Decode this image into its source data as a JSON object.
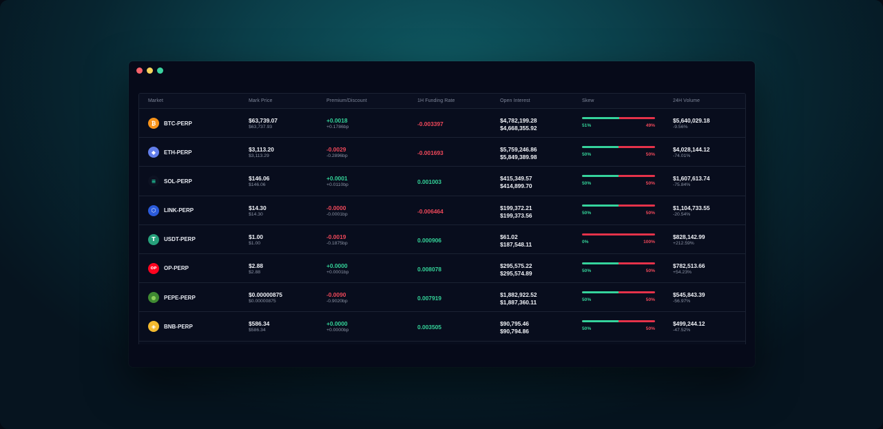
{
  "window": {
    "buttons": [
      "close",
      "minimize",
      "maximize"
    ]
  },
  "colors": {
    "positive": "#34d399",
    "negative": "#f0485a",
    "background": "#060a19"
  },
  "table": {
    "columns": [
      "Market",
      "Mark Price",
      "Premium/Discount",
      "1H Funding Rate",
      "Open Interest",
      "Skew",
      "24H Volume"
    ],
    "rows": [
      {
        "market": "BTC-PERP",
        "icon": "bitcoin-icon",
        "mark_price": "$63,739.07",
        "index_price": "$63,737.93",
        "premium": "+0.0018",
        "premium_bp": "+0.1786bp",
        "premium_sign": "pos",
        "funding": "-0.003397",
        "funding_sign": "neg",
        "oi_long": "$4,782,199.28",
        "oi_short": "$4,668,355.92",
        "skew_long": "51%",
        "skew_short": "49%",
        "skew_long_value": 0.51,
        "volume": "$5,640,029.18",
        "volume_change": "-9.56%"
      },
      {
        "market": "ETH-PERP",
        "icon": "ethereum-icon",
        "mark_price": "$3,113.20",
        "index_price": "$3,113.29",
        "premium": "-0.0029",
        "premium_bp": "-0.2896bp",
        "premium_sign": "neg",
        "funding": "-0.001693",
        "funding_sign": "neg",
        "oi_long": "$5,759,246.86",
        "oi_short": "$5,849,389.98",
        "skew_long": "50%",
        "skew_short": "50%",
        "skew_long_value": 0.5,
        "volume": "$4,028,144.12",
        "volume_change": "-74.01%"
      },
      {
        "market": "SOL-PERP",
        "icon": "solana-icon",
        "mark_price": "$146.06",
        "index_price": "$146.06",
        "premium": "+0.0001",
        "premium_bp": "+0.0110bp",
        "premium_sign": "pos",
        "funding": "0.001003",
        "funding_sign": "pos",
        "oi_long": "$415,349.57",
        "oi_short": "$414,899.70",
        "skew_long": "50%",
        "skew_short": "50%",
        "skew_long_value": 0.5,
        "volume": "$1,607,613.74",
        "volume_change": "-75.84%"
      },
      {
        "market": "LINK-PERP",
        "icon": "chainlink-icon",
        "mark_price": "$14.30",
        "index_price": "$14.30",
        "premium": "-0.0000",
        "premium_bp": "-0.0001bp",
        "premium_sign": "neg",
        "funding": "-0.006464",
        "funding_sign": "neg",
        "oi_long": "$199,372.21",
        "oi_short": "$199,373.56",
        "skew_long": "50%",
        "skew_short": "50%",
        "skew_long_value": 0.5,
        "volume": "$1,104,733.55",
        "volume_change": "-20.54%"
      },
      {
        "market": "USDT-PERP",
        "icon": "tether-icon",
        "mark_price": "$1.00",
        "index_price": "$1.00",
        "premium": "-0.0019",
        "premium_bp": "-0.1875bp",
        "premium_sign": "neg",
        "funding": "0.000906",
        "funding_sign": "pos",
        "oi_long": "$61.02",
        "oi_short": "$187,548.11",
        "skew_long": "0%",
        "skew_short": "100%",
        "skew_long_value": 0.0,
        "volume": "$828,142.99",
        "volume_change": "+212.59%"
      },
      {
        "market": "OP-PERP",
        "icon": "optimism-icon",
        "mark_price": "$2.88",
        "index_price": "$2.88",
        "premium": "+0.0000",
        "premium_bp": "+0.0001bp",
        "premium_sign": "pos",
        "funding": "0.008078",
        "funding_sign": "pos",
        "oi_long": "$295,575.22",
        "oi_short": "$295,574.89",
        "skew_long": "50%",
        "skew_short": "50%",
        "skew_long_value": 0.5,
        "volume": "$782,513.66",
        "volume_change": "+54.23%"
      },
      {
        "market": "PEPE-PERP",
        "icon": "pepe-icon",
        "mark_price": "$0.00000875",
        "index_price": "$0.00000875",
        "premium": "-0.0090",
        "premium_bp": "-0.9020bp",
        "premium_sign": "neg",
        "funding": "0.007919",
        "funding_sign": "pos",
        "oi_long": "$1,882,922.52",
        "oi_short": "$1,887,360.11",
        "skew_long": "50%",
        "skew_short": "50%",
        "skew_long_value": 0.5,
        "volume": "$545,843.39",
        "volume_change": "-56.97%"
      },
      {
        "market": "BNB-PERP",
        "icon": "bnb-icon",
        "mark_price": "$586.34",
        "index_price": "$586.34",
        "premium": "+0.0000",
        "premium_bp": "+0.0000bp",
        "premium_sign": "pos",
        "funding": "0.003505",
        "funding_sign": "pos",
        "oi_long": "$90,795.46",
        "oi_short": "$90,794.86",
        "skew_long": "50%",
        "skew_short": "50%",
        "skew_long_value": 0.5,
        "volume": "$499,244.12",
        "volume_change": "-47.52%"
      }
    ]
  }
}
